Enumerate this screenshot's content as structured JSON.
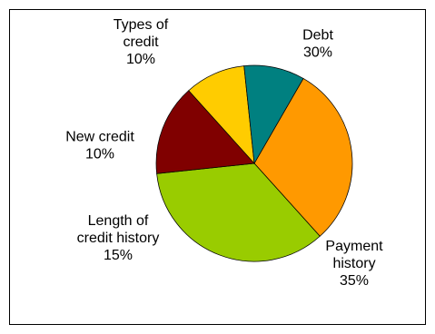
{
  "chart_data": {
    "type": "pie",
    "title": "",
    "start_angle_deg": -60,
    "direction": "clockwise",
    "slices": [
      {
        "name": "Debt",
        "label_lines": [
          "Debt",
          "30%"
        ],
        "value": 30,
        "color": "#FF9900"
      },
      {
        "name": "Payment history",
        "label_lines": [
          "Payment",
          "history",
          "35%"
        ],
        "value": 35,
        "color": "#99CC00"
      },
      {
        "name": "Length of credit history",
        "label_lines": [
          "Length of",
          "credit history",
          "15%"
        ],
        "value": 15,
        "color": "#800000"
      },
      {
        "name": "New credit",
        "label_lines": [
          "New credit",
          "10%"
        ],
        "value": 10,
        "color": "#FFCC00"
      },
      {
        "name": "Types of credit",
        "label_lines": [
          "Types of",
          "credit",
          "10%"
        ],
        "value": 10,
        "color": "#008080"
      }
    ],
    "legend": false
  }
}
